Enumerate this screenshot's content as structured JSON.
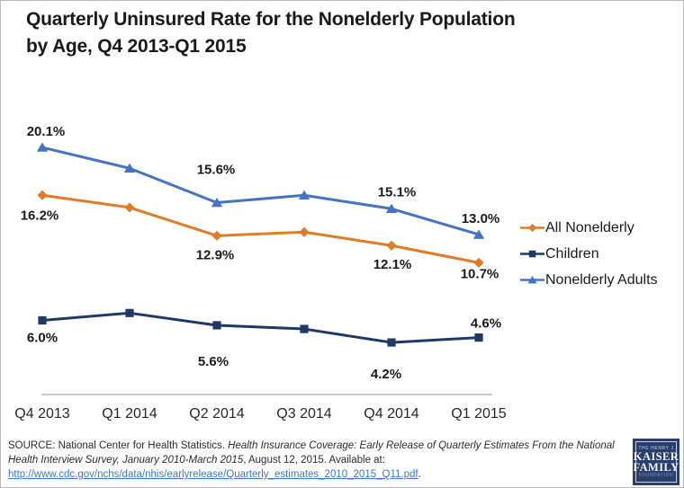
{
  "title": {
    "line1": "Quarterly Uninsured Rate for the Nonelderly Population",
    "line2": "by Age, Q4 2013-Q1 2015"
  },
  "chart_data": {
    "type": "line",
    "title": "Quarterly Uninsured Rate for the Nonelderly Population by Age, Q4 2013-Q1 2015",
    "categories": [
      "Q4 2013",
      "Q1 2014",
      "Q2 2014",
      "Q3 2014",
      "Q4 2014",
      "Q1 2015"
    ],
    "series": [
      {
        "name": "All Nonelderly",
        "color": "#e07c28",
        "marker": "diamond",
        "values": [
          16.2,
          15.2,
          12.9,
          13.2,
          12.1,
          10.7
        ],
        "labels": [
          {
            "index": 0,
            "text": "16.2%",
            "dx": -3,
            "dy": 27
          },
          {
            "index": 2,
            "text": "12.9%",
            "dx": -2,
            "dy": 26
          },
          {
            "index": 4,
            "text": "12.1%",
            "dx": 1,
            "dy": 26
          },
          {
            "index": 5,
            "text": "10.7%",
            "dx": 1,
            "dy": 17
          }
        ]
      },
      {
        "name": "Children",
        "color": "#1f3864",
        "marker": "square",
        "values": [
          6.0,
          6.6,
          5.6,
          5.3,
          4.2,
          4.6
        ],
        "labels": [
          {
            "index": 0,
            "text": "6.0%",
            "dx": 0,
            "dy": 24
          },
          {
            "index": 2,
            "text": "5.6%",
            "dx": -4,
            "dy": 45
          },
          {
            "index": 4,
            "text": "4.2%",
            "dx": -6,
            "dy": 40
          },
          {
            "index": 5,
            "text": "4.6%",
            "dx": 8,
            "dy": -11
          }
        ]
      },
      {
        "name": "Nonelderly Adults",
        "color": "#4472c4",
        "marker": "triangle",
        "values": [
          20.1,
          18.4,
          15.6,
          16.2,
          15.1,
          13.0
        ],
        "labels": [
          {
            "index": 0,
            "text": "20.1%",
            "dx": 4,
            "dy": -13
          },
          {
            "index": 2,
            "text": "15.6%",
            "dx": -1,
            "dy": -32
          },
          {
            "index": 4,
            "text": "15.1%",
            "dx": 6,
            "dy": -14
          },
          {
            "index": 5,
            "text": "13.0%",
            "dx": 2,
            "dy": -13
          }
        ]
      }
    ],
    "ylim": [
      0,
      25
    ],
    "grid": false,
    "legend_position": "right",
    "axis_color": "#b7b7b7",
    "label_color": "#1a1a1a",
    "tick_color": "#262626",
    "note": "Only points at indexes 0,2,4,5 carry printed data labels; values at indexes 1 and 3 are estimated from line positions."
  },
  "footer": {
    "line1_regular": "SOURCE: National Center for Health Statistics. ",
    "line1_italic": "Health Insurance Coverage: Early Release of Quarterly Estimates From the National",
    "line2_italic": "Health Interview Survey, January 2010-March 2015",
    "line2_regular": ", August 12, 2015. Available at:",
    "link_text": "http://www.cdc.gov/nchs/data/nhis/earlyrelease/Quarterly_estimates_2010_2015_Q11.pdf",
    "link_suffix": "."
  },
  "logo": {
    "top": "THE HENRY J",
    "name1": "KAISER",
    "name2": "FAMILY",
    "bottom": "FOUNDATION"
  }
}
